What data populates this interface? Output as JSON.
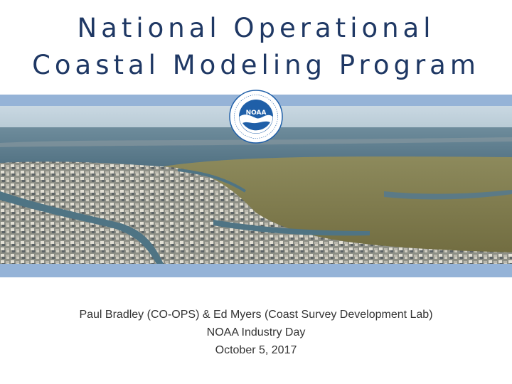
{
  "slide": {
    "title_line1": "National Operational",
    "title_line2": "Coastal Modeling Program",
    "logo_text": "NOAA",
    "logo_ring_text": "NATIONAL OCEANIC AND ATMOSPHERIC ADMINISTRATION · U.S. DEPARTMENT OF COMMERCE",
    "authors": "Paul Bradley (CO-OPS) & Ed Myers (Coast Survey Development Lab)",
    "event": "NOAA Industry Day",
    "date": "October 5, 2017"
  },
  "colors": {
    "title": "#1f3864",
    "band": "#95b3d7",
    "noaa_blue": "#1f5fa8"
  },
  "icons": {
    "logo": "noaa-logo-icon"
  }
}
